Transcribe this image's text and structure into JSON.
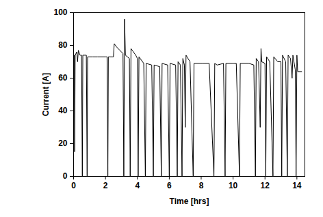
{
  "chart_data": {
    "type": "line",
    "x_label": "Time [hrs]",
    "y_label": "Current [A]",
    "color": "#000000",
    "xlim": [
      0,
      14.5
    ],
    "xticks": [
      0,
      2,
      4,
      6,
      8,
      10,
      12,
      14
    ],
    "ylim": [
      0,
      100
    ],
    "yticks": [
      0,
      20,
      40,
      60,
      80,
      100
    ],
    "grid": false,
    "x": [
      0,
      0.02,
      0.05,
      0.07,
      0.1,
      0.2,
      0.25,
      0.3,
      0.4,
      0.5,
      0.55,
      0.58,
      0.8,
      0.85,
      0.88,
      1.2,
      1.5,
      2.0,
      2.1,
      2.15,
      2.18,
      2.5,
      2.55,
      2.7,
      2.9,
      3.1,
      3.15,
      3.2,
      3.25,
      3.5,
      3.55,
      3.6,
      3.9,
      4.0,
      4.05,
      4.1,
      4.4,
      4.5,
      4.55,
      4.9,
      5.0,
      5.05,
      5.4,
      5.5,
      5.55,
      5.9,
      6.0,
      6.05,
      6.4,
      6.5,
      6.55,
      6.7,
      6.8,
      6.85,
      6.95,
      7.0,
      7.05,
      7.3,
      7.5,
      7.55,
      8.0,
      8.1,
      8.5,
      8.8,
      8.85,
      9.0,
      9.4,
      9.5,
      9.55,
      10.0,
      10.2,
      10.4,
      10.45,
      11.0,
      11.3,
      11.4,
      11.45,
      11.6,
      11.7,
      11.75,
      11.8,
      12.0,
      12.05,
      12.1,
      12.3,
      12.5,
      12.55,
      12.8,
      13.0,
      13.05,
      13.1,
      13.3,
      13.4,
      13.45,
      13.6,
      13.7,
      13.75,
      13.9,
      13.95,
      14.0,
      14.05,
      14.3
    ],
    "values": [
      0,
      74,
      74,
      15,
      74,
      76,
      70,
      77,
      74,
      74,
      0,
      74,
      74,
      0,
      73,
      73,
      73,
      73,
      73,
      0,
      73,
      73,
      81,
      79,
      77,
      75,
      0,
      96,
      74,
      72,
      0,
      78,
      74,
      72,
      0,
      73,
      69,
      0,
      69,
      68,
      0,
      68,
      67,
      0,
      69,
      68,
      0,
      69,
      68,
      0,
      70,
      68,
      0,
      72,
      68,
      30,
      74,
      70,
      0,
      69,
      69,
      69,
      69,
      0,
      69,
      68,
      69,
      0,
      69,
      69,
      69,
      0,
      69,
      69,
      68,
      0,
      72,
      70,
      30,
      78,
      70,
      69,
      0,
      73,
      70,
      0,
      73,
      70,
      70,
      0,
      74,
      70,
      0,
      74,
      72,
      60,
      74,
      65,
      0,
      74,
      64,
      64
    ]
  }
}
